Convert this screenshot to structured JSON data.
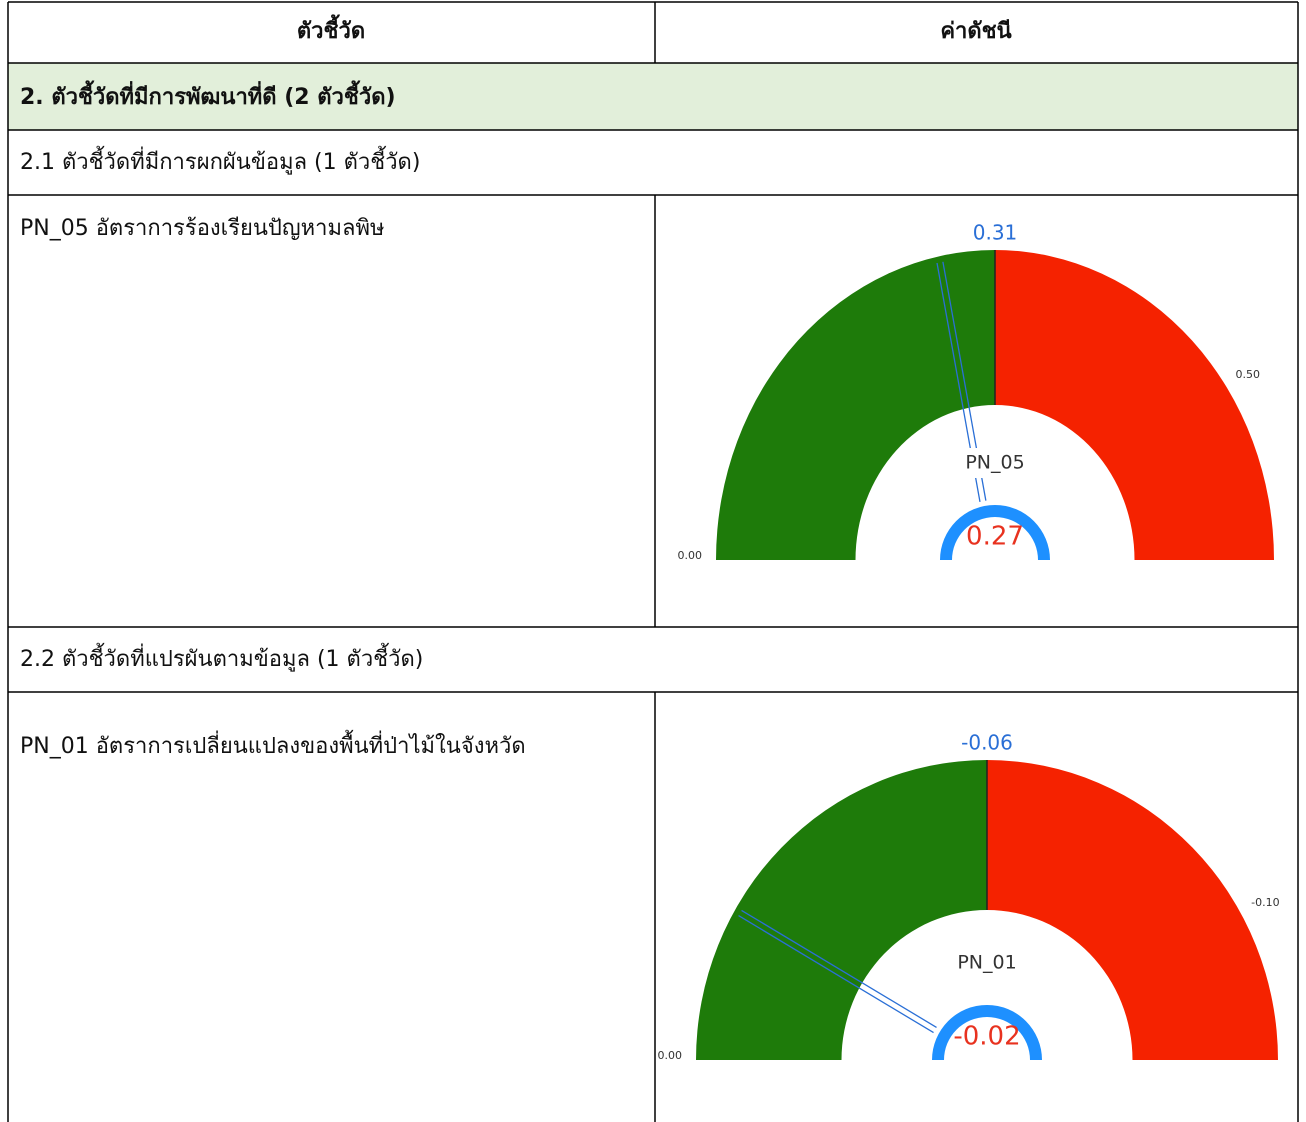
{
  "table": {
    "header": [
      "ตัวชี้วัด",
      "ค่าดัชนี"
    ],
    "rows": [
      {
        "section": "2. ตัวชี้วัดที่มีการพัฒนาที่ดี (2 ตัวชี้วัด)"
      },
      {
        "subsection": "2.1 ตัวชี้วัดที่มีการผกผันข้อมูล (1 ตัวชี้วัด)"
      },
      {
        "indicator": "PN_05 อัตราการร้องเรียนปัญหามลพิษ"
      },
      {
        "subsection": "2.2 ตัวชี้วัดที่แปรผันตามข้อมูล (1 ตัวชี้วัด)"
      },
      {
        "indicator": "PN_01 อัตราการเปลี่ยนแปลงของพื้นที่ป่าไม้ในจังหวัด"
      }
    ]
  },
  "chart_data": [
    {
      "type": "gauge",
      "name": "PN_05",
      "value": 0.27,
      "target": 0.31,
      "ylim": [
        0,
        0.62
      ],
      "yticks": [
        {
          "value": 0,
          "label": "0.00"
        },
        {
          "value": 0.5,
          "label": "0.50"
        }
      ],
      "colors": {
        "below": "#1e7b0a",
        "above": "#f52200",
        "needle": "#2a6fd6",
        "ring": "#1e90ff",
        "value": "#e8321f"
      }
    },
    {
      "type": "gauge",
      "name": "PN_01",
      "value": -0.02,
      "target": -0.06,
      "ylim": [
        0,
        -0.12
      ],
      "yticks": [
        {
          "value": 0,
          "label": "0.00"
        },
        {
          "value": -0.1,
          "label": "-0.10"
        }
      ],
      "colors": {
        "below": "#1e7b0a",
        "above": "#f52200",
        "needle": "#2a6fd6",
        "ring": "#1e90ff",
        "value": "#e8321f"
      }
    }
  ]
}
